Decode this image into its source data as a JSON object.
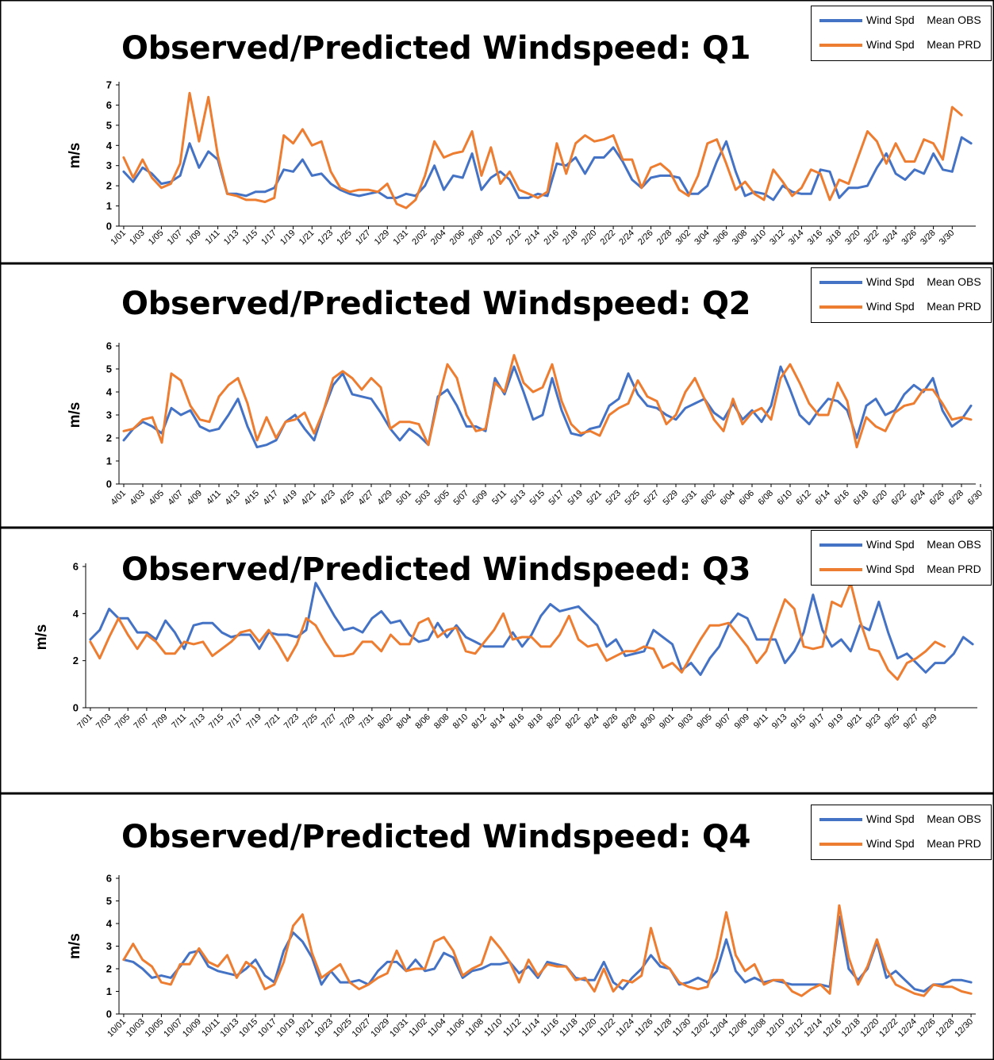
{
  "colors": {
    "obs": "#4472C4",
    "prd": "#ED7D31",
    "frame": "#000000",
    "axis": "#000000"
  },
  "legend": [
    {
      "label": "Wind Spd    Mean OBS",
      "color": "#4472C4"
    },
    {
      "label": "Wind Spd    Mean PRD",
      "color": "#ED7D31"
    }
  ],
  "chart_data": [
    {
      "type": "line",
      "title": "Observed/Predicted Windspeed: Q1",
      "ylabel": "m/s",
      "xlabel": "",
      "ylim": [
        0,
        7
      ],
      "yticks": [
        0,
        1,
        2,
        3,
        4,
        5,
        6,
        7
      ],
      "grid": false,
      "legend_position": "top-right",
      "x_tick_labels": [
        "1/01",
        "1/03",
        "1/05",
        "1/07",
        "1/09",
        "1/11",
        "1/13",
        "1/15",
        "1/17",
        "1/19",
        "1/21",
        "1/23",
        "1/25",
        "1/27",
        "1/29",
        "1/31",
        "2/02",
        "2/04",
        "2/06",
        "2/08",
        "2/10",
        "2/12",
        "2/14",
        "2/16",
        "2/18",
        "2/20",
        "2/22",
        "2/24",
        "2/26",
        "2/28",
        "3/02",
        "3/04",
        "3/06",
        "3/08",
        "3/10",
        "3/12",
        "3/14",
        "3/16",
        "3/18",
        "3/20",
        "3/22",
        "3/24",
        "3/26",
        "3/28",
        "3/30"
      ],
      "series": [
        {
          "name": "Wind Spd    Mean OBS",
          "values": [
            2.7,
            2.2,
            2.9,
            2.6,
            2.1,
            2.2,
            2.5,
            4.1,
            2.9,
            3.7,
            3.3,
            1.6,
            1.6,
            1.5,
            1.7,
            1.7,
            1.9,
            2.8,
            2.7,
            3.3,
            2.5,
            2.6,
            2.1,
            1.8,
            1.6,
            1.5,
            1.6,
            1.7,
            1.4,
            1.4,
            1.6,
            1.5,
            2.0,
            3.0,
            1.8,
            2.5,
            2.4,
            3.6,
            1.8,
            2.4,
            2.7,
            2.3,
            1.4,
            1.4,
            1.6,
            1.5,
            3.1,
            3.0,
            3.4,
            2.6,
            3.4,
            3.4,
            3.9,
            3.2,
            2.3,
            1.9,
            2.4,
            2.5,
            2.5,
            2.4,
            1.6,
            1.6,
            2.0,
            3.2,
            4.2,
            2.7,
            1.5,
            1.7,
            1.6,
            1.3,
            2.0,
            1.7,
            1.6,
            1.6,
            2.8,
            2.7,
            1.4,
            1.9,
            1.9,
            2.0,
            2.9,
            3.6,
            2.6,
            2.3,
            2.8,
            2.6,
            3.6,
            2.8,
            2.7,
            4.4,
            4.1
          ]
        },
        {
          "name": "Wind Spd    Mean PRD",
          "values": [
            3.4,
            2.4,
            3.3,
            2.4,
            1.9,
            2.1,
            3.1,
            6.6,
            4.2,
            6.4,
            3.5,
            1.6,
            1.5,
            1.3,
            1.3,
            1.2,
            1.4,
            4.5,
            4.1,
            4.8,
            4.0,
            4.2,
            2.7,
            1.9,
            1.7,
            1.8,
            1.8,
            1.7,
            2.1,
            1.1,
            0.9,
            1.3,
            2.5,
            4.2,
            3.4,
            3.6,
            3.7,
            4.7,
            2.5,
            3.9,
            2.1,
            2.7,
            1.8,
            1.6,
            1.4,
            1.7,
            4.1,
            2.6,
            4.1,
            4.5,
            4.2,
            4.3,
            4.5,
            3.3,
            3.3,
            1.9,
            2.9,
            3.1,
            2.7,
            1.8,
            1.5,
            2.5,
            4.1,
            4.3,
            3.1,
            1.8,
            2.2,
            1.6,
            1.3,
            2.8,
            2.2,
            1.5,
            1.9,
            2.8,
            2.6,
            1.3,
            2.3,
            2.1,
            3.4,
            4.7,
            4.2,
            3.1,
            4.1,
            3.2,
            3.2,
            4.3,
            4.1,
            3.3,
            5.9,
            5.5
          ]
        }
      ]
    },
    {
      "type": "line",
      "title": "Observed/Predicted Windspeed: Q2",
      "ylabel": "m/s",
      "xlabel": "",
      "ylim": [
        0,
        6
      ],
      "yticks": [
        0,
        1,
        2,
        3,
        4,
        5,
        6
      ],
      "grid": false,
      "legend_position": "top-right",
      "x_tick_labels": [
        "4/01",
        "4/03",
        "4/05",
        "4/07",
        "4/09",
        "4/11",
        "4/13",
        "4/15",
        "4/17",
        "4/19",
        "4/21",
        "4/23",
        "4/25",
        "4/27",
        "4/29",
        "5/01",
        "5/03",
        "5/05",
        "5/07",
        "5/09",
        "5/11",
        "5/13",
        "5/15",
        "5/17",
        "5/19",
        "5/21",
        "5/23",
        "5/25",
        "5/27",
        "5/29",
        "5/31",
        "6/02",
        "6/04",
        "6/06",
        "6/08",
        "6/10",
        "6/12",
        "6/14",
        "6/16",
        "6/18",
        "6/20",
        "6/22",
        "6/24",
        "6/26",
        "6/28",
        "6/30"
      ],
      "series": [
        {
          "name": "Wind Spd    Mean OBS",
          "values": [
            1.9,
            2.4,
            2.7,
            2.5,
            2.2,
            3.3,
            3.0,
            3.2,
            2.5,
            2.3,
            2.4,
            3.0,
            3.7,
            2.5,
            1.6,
            1.7,
            1.9,
            2.7,
            3.0,
            2.4,
            1.9,
            3.2,
            4.3,
            4.8,
            3.9,
            3.8,
            3.7,
            3.1,
            2.4,
            1.9,
            2.4,
            2.1,
            1.7,
            3.8,
            4.1,
            3.4,
            2.5,
            2.5,
            2.3,
            4.6,
            3.9,
            5.1,
            4.0,
            2.8,
            3.0,
            4.6,
            3.2,
            2.2,
            2.1,
            2.4,
            2.5,
            3.4,
            3.7,
            4.8,
            3.9,
            3.4,
            3.3,
            3.0,
            2.8,
            3.3,
            3.5,
            3.7,
            3.1,
            2.8,
            3.5,
            2.8,
            3.2,
            2.7,
            3.4,
            5.1,
            4.1,
            3.0,
            2.6,
            3.2,
            3.7,
            3.6,
            3.2,
            2.0,
            3.4,
            3.7,
            3.0,
            3.2,
            3.9,
            4.3,
            4.0,
            4.6,
            3.2,
            2.5,
            2.8,
            3.4
          ]
        },
        {
          "name": "Wind Spd    Mean PRD",
          "values": [
            2.3,
            2.4,
            2.8,
            2.9,
            1.8,
            4.8,
            4.5,
            3.4,
            2.8,
            2.7,
            3.8,
            4.3,
            4.6,
            3.5,
            1.9,
            2.9,
            2.0,
            2.7,
            2.8,
            3.1,
            2.2,
            3.2,
            4.6,
            4.9,
            4.6,
            4.1,
            4.6,
            4.2,
            2.4,
            2.7,
            2.7,
            2.6,
            1.7,
            3.6,
            5.2,
            4.6,
            3.0,
            2.3,
            2.4,
            4.4,
            4.0,
            5.6,
            4.4,
            4.0,
            4.2,
            5.2,
            3.6,
            2.6,
            2.2,
            2.3,
            2.1,
            3.0,
            3.3,
            3.5,
            4.5,
            3.8,
            3.6,
            2.6,
            3.0,
            4.0,
            4.6,
            3.7,
            2.8,
            2.3,
            3.7,
            2.6,
            3.1,
            3.3,
            2.8,
            4.6,
            5.2,
            4.4,
            3.5,
            3.0,
            3.0,
            4.4,
            3.6,
            1.6,
            2.9,
            2.5,
            2.3,
            3.1,
            3.4,
            3.5,
            4.1,
            4.1,
            3.5,
            2.8,
            2.9,
            2.8
          ]
        }
      ]
    },
    {
      "type": "line",
      "title": "Observed/Predicted Windspeed: Q3",
      "ylabel": "m/s",
      "xlabel": "",
      "ylim": [
        0,
        6
      ],
      "yticks": [
        0,
        2,
        4,
        6
      ],
      "grid": false,
      "legend_position": "top-right",
      "x_tick_labels": [
        "7/01",
        "7/03",
        "7/05",
        "7/07",
        "7/09",
        "7/11",
        "7/13",
        "7/15",
        "7/17",
        "7/19",
        "7/21",
        "7/23",
        "7/25",
        "7/27",
        "7/29",
        "7/31",
        "8/02",
        "8/04",
        "8/06",
        "8/08",
        "8/10",
        "8/12",
        "8/14",
        "8/16",
        "8/18",
        "8/20",
        "8/22",
        "8/24",
        "8/26",
        "8/28",
        "8/30",
        "9/01",
        "9/03",
        "9/05",
        "9/07",
        "9/09",
        "9/11",
        "9/13",
        "9/15",
        "9/17",
        "9/19",
        "9/21",
        "9/23",
        "9/25",
        "9/27",
        "9/29"
      ],
      "series": [
        {
          "name": "Wind Spd    Mean OBS",
          "values": [
            2.9,
            3.3,
            4.2,
            3.8,
            3.8,
            3.2,
            3.2,
            2.9,
            3.7,
            3.2,
            2.5,
            3.5,
            3.6,
            3.6,
            3.2,
            3.0,
            3.1,
            3.1,
            2.5,
            3.2,
            3.1,
            3.1,
            3.0,
            3.3,
            5.3,
            4.6,
            3.9,
            3.3,
            3.4,
            3.2,
            3.8,
            4.1,
            3.6,
            3.7,
            3.1,
            2.8,
            2.9,
            3.6,
            3.0,
            3.5,
            3.0,
            2.8,
            2.6,
            2.6,
            2.6,
            3.2,
            2.6,
            3.1,
            3.9,
            4.4,
            4.1,
            4.2,
            4.3,
            3.9,
            3.5,
            2.6,
            2.9,
            2.2,
            2.3,
            2.4,
            3.3,
            3.0,
            2.7,
            1.6,
            1.9,
            1.4,
            2.1,
            2.6,
            3.5,
            4.0,
            3.8,
            2.9,
            2.9,
            2.9,
            1.9,
            2.4,
            3.2,
            4.8,
            3.3,
            2.6,
            2.9,
            2.4,
            3.5,
            3.3,
            4.5,
            3.2,
            2.1,
            2.3,
            1.9,
            1.5,
            1.9,
            1.9,
            2.3,
            3.0,
            2.7
          ]
        },
        {
          "name": "Wind Spd    Mean PRD",
          "values": [
            2.8,
            2.1,
            3.0,
            3.8,
            3.1,
            2.5,
            3.1,
            2.8,
            2.3,
            2.3,
            2.8,
            2.7,
            2.8,
            2.2,
            2.5,
            2.8,
            3.2,
            3.3,
            2.8,
            3.3,
            2.7,
            2.0,
            2.7,
            3.8,
            3.5,
            2.8,
            2.2,
            2.2,
            2.3,
            2.8,
            2.8,
            2.4,
            3.1,
            2.7,
            2.7,
            3.6,
            3.8,
            3.0,
            3.3,
            3.4,
            2.4,
            2.3,
            2.8,
            3.3,
            4.0,
            2.9,
            3.0,
            3.0,
            2.6,
            2.6,
            3.1,
            3.9,
            2.9,
            2.6,
            2.7,
            2.0,
            2.2,
            2.4,
            2.4,
            2.6,
            2.5,
            1.7,
            1.9,
            1.5,
            2.2,
            2.9,
            3.5,
            3.5,
            3.6,
            3.1,
            2.6,
            1.9,
            2.4,
            3.5,
            4.6,
            4.2,
            2.6,
            2.5,
            2.6,
            4.5,
            4.3,
            5.3,
            3.7,
            2.5,
            2.4,
            1.6,
            1.2,
            1.9,
            2.1,
            2.4,
            2.8,
            2.6
          ]
        }
      ]
    },
    {
      "type": "line",
      "title": "Observed/Predicted Windspeed: Q4",
      "ylabel": "m/s",
      "xlabel": "",
      "ylim": [
        0,
        6
      ],
      "yticks": [
        0,
        1,
        2,
        3,
        4,
        5,
        6
      ],
      "grid": false,
      "legend_position": "top-right",
      "x_tick_labels": [
        "10/01",
        "10/03",
        "10/05",
        "10/07",
        "10/09",
        "10/11",
        "10/13",
        "10/15",
        "10/17",
        "10/19",
        "10/21",
        "10/23",
        "10/25",
        "10/27",
        "10/29",
        "10/31",
        "11/02",
        "11/04",
        "11/06",
        "11/08",
        "11/10",
        "11/12",
        "11/14",
        "11/16",
        "11/18",
        "11/20",
        "11/22",
        "11/24",
        "11/26",
        "11/28",
        "11/30",
        "12/02",
        "12/04",
        "12/06",
        "12/08",
        "12/10",
        "12/12",
        "12/14",
        "12/16",
        "12/18",
        "12/20",
        "12/22",
        "12/24",
        "12/26",
        "12/28",
        "12/30"
      ],
      "series": [
        {
          "name": "Wind Spd    Mean OBS",
          "values": [
            2.4,
            2.3,
            2.0,
            1.6,
            1.7,
            1.6,
            2.1,
            2.7,
            2.8,
            2.1,
            1.9,
            1.8,
            1.7,
            2.0,
            2.4,
            1.7,
            1.4,
            2.8,
            3.6,
            3.2,
            2.5,
            1.3,
            1.9,
            1.4,
            1.4,
            1.5,
            1.3,
            1.9,
            2.3,
            2.3,
            1.9,
            2.4,
            1.9,
            2.0,
            2.7,
            2.5,
            1.6,
            1.9,
            2.0,
            2.2,
            2.2,
            2.3,
            1.8,
            2.1,
            1.6,
            2.3,
            2.2,
            2.1,
            1.6,
            1.5,
            1.5,
            2.3,
            1.4,
            1.1,
            1.6,
            2.0,
            2.6,
            2.1,
            2.0,
            1.3,
            1.4,
            1.6,
            1.4,
            1.9,
            3.3,
            1.9,
            1.4,
            1.6,
            1.4,
            1.5,
            1.4,
            1.3,
            1.3,
            1.3,
            1.3,
            1.2,
            4.3,
            2.0,
            1.5,
            2.0,
            3.2,
            1.6,
            1.9,
            1.5,
            1.1,
            1.0,
            1.3,
            1.3,
            1.5,
            1.5,
            1.4
          ]
        },
        {
          "name": "Wind Spd    Mean PRD",
          "values": [
            2.4,
            3.1,
            2.4,
            2.1,
            1.4,
            1.3,
            2.2,
            2.2,
            2.9,
            2.3,
            2.1,
            2.6,
            1.6,
            2.3,
            2.0,
            1.1,
            1.3,
            2.3,
            3.9,
            4.4,
            2.7,
            1.6,
            1.9,
            2.2,
            1.4,
            1.1,
            1.3,
            1.6,
            1.8,
            2.8,
            1.9,
            2.0,
            2.0,
            3.2,
            3.4,
            2.8,
            1.7,
            2.0,
            2.2,
            3.4,
            2.9,
            2.3,
            1.4,
            2.4,
            1.7,
            2.2,
            2.1,
            2.1,
            1.5,
            1.6,
            1.0,
            2.0,
            1.0,
            1.5,
            1.4,
            1.7,
            3.8,
            2.3,
            2.0,
            1.4,
            1.2,
            1.1,
            1.2,
            2.5,
            4.5,
            2.6,
            1.9,
            2.2,
            1.3,
            1.5,
            1.5,
            1.0,
            0.8,
            1.1,
            1.3,
            0.9,
            4.8,
            2.5,
            1.3,
            2.1,
            3.3,
            2.0,
            1.3,
            1.1,
            0.9,
            0.8,
            1.3,
            1.2,
            1.2,
            1.0,
            0.9
          ]
        }
      ]
    }
  ]
}
